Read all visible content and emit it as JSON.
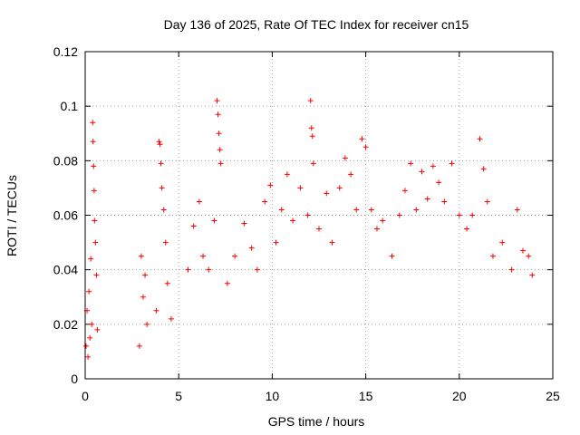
{
  "chart_data": {
    "type": "scatter",
    "title": "Day 136 of 2025, Rate Of TEC Index for receiver cn15",
    "xlabel": "GPS time / hours",
    "ylabel": "ROTI / TECUs",
    "xlim": [
      0,
      25
    ],
    "ylim": [
      0,
      0.12
    ],
    "x_ticks": [
      0,
      5,
      10,
      15,
      20,
      25
    ],
    "y_ticks": [
      0,
      0.02,
      0.04,
      0.06,
      0.08,
      0.1,
      0.12
    ],
    "x_tick_labels": [
      "0",
      "5",
      "10",
      "15",
      "20",
      "25"
    ],
    "y_tick_labels": [
      "0",
      "0.02",
      "0.04",
      "0.06",
      "0.08",
      "0.1",
      "0.12"
    ],
    "grid": true,
    "marker": "+",
    "color": "#ff0000",
    "data_gaps_hours": [
      [
        0.7,
        2.8
      ],
      [
        4.8,
        5.3
      ]
    ],
    "series": [
      {
        "values": [
          [
            0.05,
            0.012
          ],
          [
            0.1,
            0.025
          ],
          [
            0.15,
            0.008
          ],
          [
            0.2,
            0.032
          ],
          [
            0.25,
            0.015
          ],
          [
            0.3,
            0.044
          ],
          [
            0.35,
            0.02
          ],
          [
            0.4,
            0.094
          ],
          [
            0.42,
            0.087
          ],
          [
            0.45,
            0.078
          ],
          [
            0.48,
            0.069
          ],
          [
            0.5,
            0.058
          ],
          [
            0.55,
            0.05
          ],
          [
            0.6,
            0.038
          ],
          [
            0.65,
            0.018
          ],
          [
            2.9,
            0.012
          ],
          [
            3.0,
            0.045
          ],
          [
            3.1,
            0.03
          ],
          [
            3.2,
            0.038
          ],
          [
            3.3,
            0.02
          ],
          [
            3.8,
            0.025
          ],
          [
            3.95,
            0.087
          ],
          [
            4.0,
            0.086
          ],
          [
            4.05,
            0.079
          ],
          [
            4.1,
            0.07
          ],
          [
            4.2,
            0.062
          ],
          [
            4.3,
            0.05
          ],
          [
            4.4,
            0.035
          ],
          [
            4.6,
            0.022
          ],
          [
            5.5,
            0.04
          ],
          [
            5.8,
            0.056
          ],
          [
            6.1,
            0.065
          ],
          [
            6.3,
            0.045
          ],
          [
            6.6,
            0.04
          ],
          [
            6.9,
            0.058
          ],
          [
            7.05,
            0.102
          ],
          [
            7.1,
            0.097
          ],
          [
            7.15,
            0.09
          ],
          [
            7.2,
            0.084
          ],
          [
            7.25,
            0.079
          ],
          [
            7.6,
            0.035
          ],
          [
            8.0,
            0.045
          ],
          [
            8.5,
            0.057
          ],
          [
            8.9,
            0.048
          ],
          [
            9.2,
            0.04
          ],
          [
            9.6,
            0.065
          ],
          [
            9.9,
            0.071
          ],
          [
            10.2,
            0.05
          ],
          [
            10.5,
            0.062
          ],
          [
            10.8,
            0.075
          ],
          [
            11.1,
            0.058
          ],
          [
            11.5,
            0.07
          ],
          [
            11.9,
            0.06
          ],
          [
            12.05,
            0.102
          ],
          [
            12.1,
            0.092
          ],
          [
            12.15,
            0.089
          ],
          [
            12.2,
            0.079
          ],
          [
            12.5,
            0.055
          ],
          [
            12.9,
            0.068
          ],
          [
            13.2,
            0.05
          ],
          [
            13.6,
            0.07
          ],
          [
            13.9,
            0.081
          ],
          [
            14.2,
            0.075
          ],
          [
            14.5,
            0.062
          ],
          [
            14.8,
            0.088
          ],
          [
            15.0,
            0.085
          ],
          [
            15.3,
            0.062
          ],
          [
            15.6,
            0.055
          ],
          [
            15.9,
            0.058
          ],
          [
            16.4,
            0.045
          ],
          [
            16.8,
            0.06
          ],
          [
            17.1,
            0.069
          ],
          [
            17.4,
            0.079
          ],
          [
            17.7,
            0.062
          ],
          [
            18.0,
            0.076
          ],
          [
            18.3,
            0.066
          ],
          [
            18.6,
            0.078
          ],
          [
            18.9,
            0.072
          ],
          [
            19.2,
            0.065
          ],
          [
            19.6,
            0.079
          ],
          [
            20.0,
            0.06
          ],
          [
            20.4,
            0.055
          ],
          [
            20.7,
            0.06
          ],
          [
            21.1,
            0.088
          ],
          [
            21.3,
            0.077
          ],
          [
            21.5,
            0.065
          ],
          [
            21.8,
            0.045
          ],
          [
            22.3,
            0.05
          ],
          [
            22.8,
            0.04
          ],
          [
            23.1,
            0.062
          ],
          [
            23.4,
            0.047
          ],
          [
            23.7,
            0.045
          ],
          [
            23.9,
            0.038
          ]
        ]
      }
    ]
  }
}
